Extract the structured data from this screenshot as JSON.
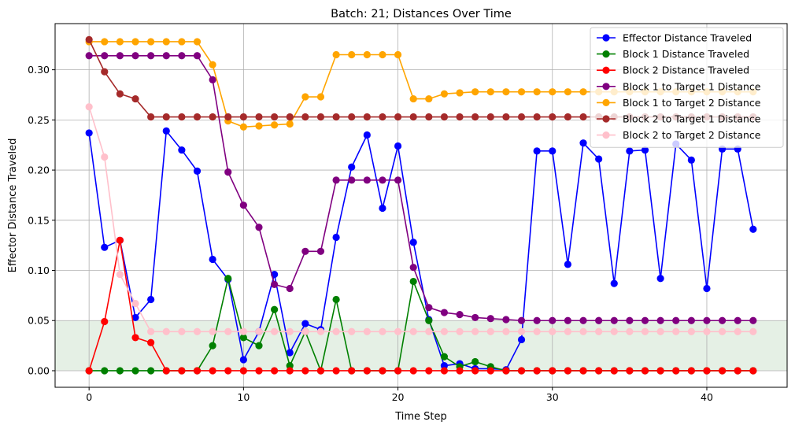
{
  "chart_data": {
    "type": "line",
    "title": "Batch: 21; Distances Over Time",
    "xlabel": "Time Step",
    "ylabel": "Effector Distance Traveled",
    "xlim": [
      -2.2,
      45.2
    ],
    "ylim": [
      -0.0165,
      0.346
    ],
    "x_ticks": [
      0,
      10,
      20,
      30,
      40
    ],
    "y_ticks": [
      0.0,
      0.05,
      0.1,
      0.15,
      0.2,
      0.25,
      0.3
    ],
    "x_tick_labels": [
      "0",
      "10",
      "20",
      "30",
      "40"
    ],
    "y_tick_labels": [
      "0.00",
      "0.05",
      "0.10",
      "0.15",
      "0.20",
      "0.25",
      "0.30"
    ],
    "grid": true,
    "legend_position": "top-right",
    "threshold_band": {
      "from": 0.0,
      "to": 0.05,
      "color": "#e5f0e5"
    },
    "x": [
      0,
      1,
      2,
      3,
      4,
      5,
      6,
      7,
      8,
      9,
      10,
      11,
      12,
      13,
      14,
      15,
      16,
      17,
      18,
      19,
      20,
      21,
      22,
      23,
      24,
      25,
      26,
      27,
      28,
      29,
      30,
      31,
      32,
      33,
      34,
      35,
      36,
      37,
      38,
      39,
      40,
      41,
      42,
      43
    ],
    "series": [
      {
        "name": "Effector Distance Traveled",
        "color": "#0000ff",
        "values": [
          0.237,
          0.123,
          0.13,
          0.053,
          0.071,
          0.239,
          0.22,
          0.199,
          0.111,
          0.091,
          0.011,
          0.039,
          0.096,
          0.018,
          0.047,
          0.041,
          0.133,
          0.203,
          0.235,
          0.162,
          0.224,
          0.128,
          0.051,
          0.005,
          0.007,
          0.002,
          0.002,
          0.001,
          0.031,
          0.219,
          0.219,
          0.106,
          0.227,
          0.211,
          0.087,
          0.219,
          0.22,
          0.092,
          0.226,
          0.21,
          0.082,
          0.221,
          0.221,
          0.141
        ]
      },
      {
        "name": "Block 1 Distance Traveled",
        "color": "#008000",
        "values": [
          0.0,
          0.0,
          0.0,
          0.0,
          0.0,
          0.0,
          0.0,
          0.0,
          0.025,
          0.092,
          0.033,
          0.025,
          0.061,
          0.005,
          0.039,
          0.0,
          0.071,
          0.0,
          0.0,
          0.0,
          0.0,
          0.089,
          0.05,
          0.014,
          0.004,
          0.009,
          0.004,
          0.0,
          0.0,
          0.0,
          0.0,
          0.0,
          0.0,
          0.0,
          0.0,
          0.0,
          0.0,
          0.0,
          0.0,
          0.0,
          0.0,
          0.0,
          0.0,
          0.0
        ]
      },
      {
        "name": "Block 2 Distance Traveled",
        "color": "#ff0000",
        "values": [
          0.0,
          0.049,
          0.13,
          0.033,
          0.028,
          0.0,
          0.0,
          0.0,
          0.0,
          0.0,
          0.0,
          0.0,
          0.0,
          0.0,
          0.0,
          0.0,
          0.0,
          0.0,
          0.0,
          0.0,
          0.0,
          0.0,
          0.0,
          0.0,
          0.0,
          0.0,
          0.0,
          0.0,
          0.0,
          0.0,
          0.0,
          0.0,
          0.0,
          0.0,
          0.0,
          0.0,
          0.0,
          0.0,
          0.0,
          0.0,
          0.0,
          0.0,
          0.0,
          0.0
        ]
      },
      {
        "name": "Block 1 to Target 1 Distance",
        "color": "#800080",
        "values": [
          0.314,
          0.314,
          0.314,
          0.314,
          0.314,
          0.314,
          0.314,
          0.314,
          0.29,
          0.198,
          0.165,
          0.143,
          0.086,
          0.082,
          0.119,
          0.119,
          0.19,
          0.19,
          0.19,
          0.19,
          0.19,
          0.103,
          0.063,
          0.058,
          0.056,
          0.053,
          0.052,
          0.051,
          0.05,
          0.05,
          0.05,
          0.05,
          0.05,
          0.05,
          0.05,
          0.05,
          0.05,
          0.05,
          0.05,
          0.05,
          0.05,
          0.05,
          0.05,
          0.05
        ]
      },
      {
        "name": "Block 1 to Target 2 Distance",
        "color": "#ffa500",
        "values": [
          0.328,
          0.328,
          0.328,
          0.328,
          0.328,
          0.328,
          0.328,
          0.328,
          0.305,
          0.249,
          0.243,
          0.244,
          0.245,
          0.246,
          0.273,
          0.273,
          0.315,
          0.315,
          0.315,
          0.315,
          0.315,
          0.271,
          0.271,
          0.276,
          0.277,
          0.278,
          0.278,
          0.278,
          0.278,
          0.278,
          0.278,
          0.278,
          0.278,
          0.278,
          0.278,
          0.278,
          0.278,
          0.278,
          0.278,
          0.278,
          0.278,
          0.278,
          0.278,
          0.278
        ]
      },
      {
        "name": "Block 2 to Target 1 Distance",
        "color": "#a52a2a",
        "values": [
          0.33,
          0.298,
          0.276,
          0.271,
          0.253,
          0.253,
          0.253,
          0.253,
          0.253,
          0.253,
          0.253,
          0.253,
          0.253,
          0.253,
          0.253,
          0.253,
          0.253,
          0.253,
          0.253,
          0.253,
          0.253,
          0.253,
          0.253,
          0.253,
          0.253,
          0.253,
          0.253,
          0.253,
          0.253,
          0.253,
          0.253,
          0.253,
          0.253,
          0.253,
          0.253,
          0.253,
          0.253,
          0.253,
          0.253,
          0.253,
          0.253,
          0.253,
          0.253,
          0.253
        ]
      },
      {
        "name": "Block 2 to Target 2 Distance",
        "color": "#ffc0cb",
        "values": [
          0.263,
          0.213,
          0.096,
          0.067,
          0.039,
          0.039,
          0.039,
          0.039,
          0.039,
          0.039,
          0.039,
          0.039,
          0.039,
          0.039,
          0.039,
          0.039,
          0.039,
          0.039,
          0.039,
          0.039,
          0.039,
          0.039,
          0.039,
          0.039,
          0.039,
          0.039,
          0.039,
          0.039,
          0.039,
          0.039,
          0.039,
          0.039,
          0.039,
          0.039,
          0.039,
          0.039,
          0.039,
          0.039,
          0.039,
          0.039,
          0.039,
          0.039,
          0.039,
          0.039
        ]
      }
    ]
  }
}
